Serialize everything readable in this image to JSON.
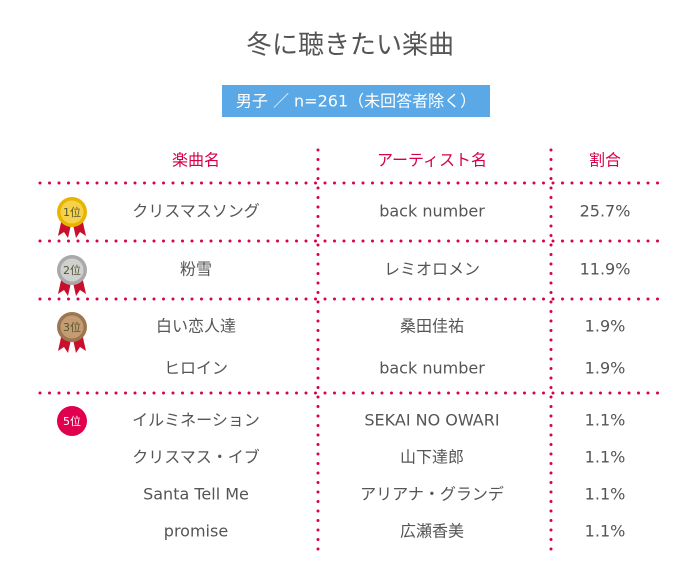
{
  "header": {
    "title": "冬に聴きたい楽曲",
    "subtitle": "男子 ／ n=261（未回答者除く）"
  },
  "table": {
    "columns": [
      "楽曲名",
      "アーティスト名",
      "割合"
    ],
    "groups": [
      {
        "rank": "1位",
        "rows": [
          [
            "クリスマスソング",
            "back number",
            "25.7%"
          ]
        ]
      },
      {
        "rank": "2位",
        "rows": [
          [
            "粉雪",
            "レミオロメン",
            "11.9%"
          ]
        ]
      },
      {
        "rank": "3位",
        "rows": [
          [
            "白い恋人達",
            "桑田佳祐",
            "1.9%"
          ],
          [
            "ヒロイン",
            "back number",
            "1.9%"
          ]
        ]
      },
      {
        "rank": "5位",
        "rows": [
          [
            "イルミネーション",
            "SEKAI NO OWARI",
            "1.1%"
          ],
          [
            "クリスマス・イブ",
            "山下達郎",
            "1.1%"
          ],
          [
            "Santa Tell Me",
            "アリアナ・グランデ",
            "1.1%"
          ],
          [
            "promise",
            "広瀬香美",
            "1.1%"
          ]
        ]
      }
    ]
  }
}
